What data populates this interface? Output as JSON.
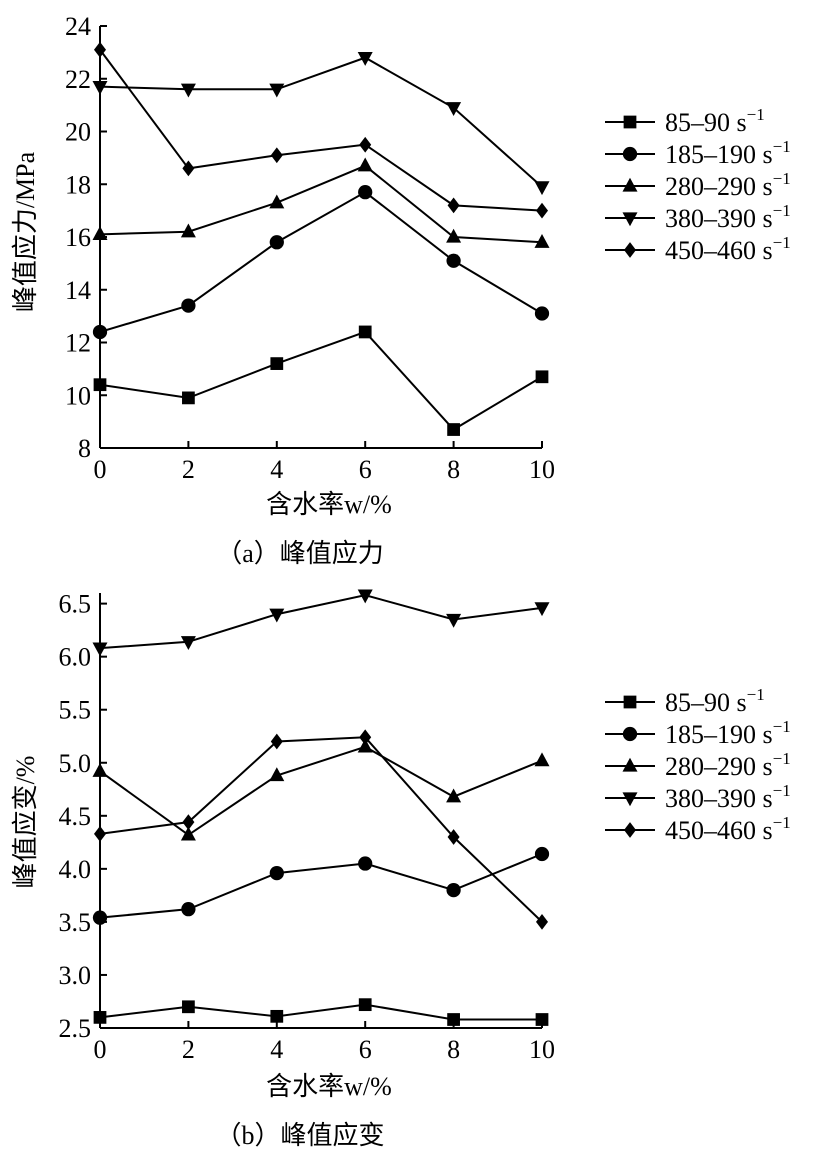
{
  "chart_data": [
    {
      "id": "a",
      "type": "line",
      "caption": "（a）峰值应力",
      "xlabel": "含水率w/%",
      "ylabel": "峰值应力/MPa",
      "x": [
        0,
        2,
        4,
        6,
        8,
        10
      ],
      "xticks": [
        "0",
        "2",
        "4",
        "6",
        "8",
        "10"
      ],
      "xlim": [
        0,
        10
      ],
      "ylim": [
        8,
        24
      ],
      "yticks": [
        "8",
        "10",
        "12",
        "14",
        "16",
        "18",
        "20",
        "22",
        "24"
      ],
      "yticks_values": [
        8,
        10,
        12,
        14,
        16,
        18,
        20,
        22,
        24
      ],
      "series": [
        {
          "name": "85–90 s",
          "sup": "−1",
          "marker": "square",
          "values": [
            10.4,
            9.9,
            11.2,
            12.4,
            8.7,
            10.7
          ]
        },
        {
          "name": "185–190 s",
          "sup": "−1",
          "marker": "circle",
          "values": [
            12.4,
            13.4,
            15.8,
            17.7,
            15.1,
            13.1
          ]
        },
        {
          "name": "280–290 s",
          "sup": "−1",
          "marker": "triangle-up",
          "values": [
            16.1,
            16.2,
            17.3,
            18.7,
            16.0,
            15.8
          ]
        },
        {
          "name": "380–390 s",
          "sup": "−1",
          "marker": "triangle-down",
          "values": [
            21.7,
            21.6,
            21.6,
            22.8,
            20.9,
            17.9
          ]
        },
        {
          "name": "450–460 s",
          "sup": "−1",
          "marker": "diamond",
          "values": [
            23.1,
            18.6,
            19.1,
            19.5,
            17.2,
            17.0
          ]
        }
      ]
    },
    {
      "id": "b",
      "type": "line",
      "caption": "（b）峰值应变",
      "xlabel": "含水率w/%",
      "ylabel": "峰值应变/%",
      "x": [
        0,
        2,
        4,
        6,
        8,
        10
      ],
      "xticks": [
        "0",
        "2",
        "4",
        "6",
        "8",
        "10"
      ],
      "xlim": [
        0,
        10
      ],
      "ylim": [
        2.5,
        6.6
      ],
      "yticks": [
        "2.5",
        "3.0",
        "3.5",
        "4.0",
        "4.5",
        "5.0",
        "5.5",
        "6.0",
        "6.5"
      ],
      "yticks_values": [
        2.5,
        3.0,
        3.5,
        4.0,
        4.5,
        5.0,
        5.5,
        6.0,
        6.5
      ],
      "series": [
        {
          "name": "85–90 s",
          "sup": "−1",
          "marker": "square",
          "values": [
            2.6,
            2.7,
            2.61,
            2.72,
            2.58,
            2.58
          ]
        },
        {
          "name": "185–190 s",
          "sup": "−1",
          "marker": "circle",
          "values": [
            3.54,
            3.62,
            3.96,
            4.05,
            3.8,
            4.14
          ]
        },
        {
          "name": "280–290 s",
          "sup": "−1",
          "marker": "triangle-up",
          "values": [
            4.92,
            4.32,
            4.88,
            5.15,
            4.68,
            5.02
          ]
        },
        {
          "name": "380–390 s",
          "sup": "−1",
          "marker": "triangle-down",
          "values": [
            6.08,
            6.14,
            6.4,
            6.58,
            6.35,
            6.46
          ]
        },
        {
          "name": "450–460 s",
          "sup": "−1",
          "marker": "diamond",
          "values": [
            4.33,
            4.44,
            5.2,
            5.24,
            4.3,
            3.5
          ]
        }
      ]
    }
  ]
}
